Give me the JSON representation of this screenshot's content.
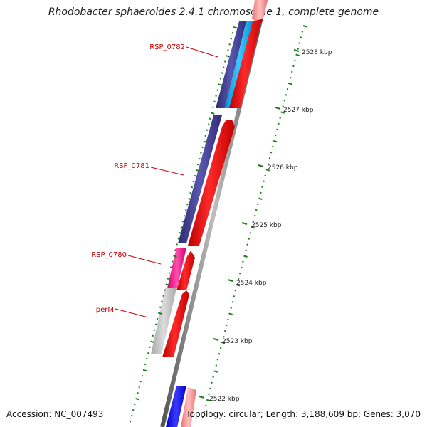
{
  "title": "Rhodobacter sphaeroides 2.4.1 chromosome 1, complete genome",
  "accession": "Accession: NC_007493",
  "topology": "Topology: circular; Length: 3,188,609 bp; Genes: 3,070",
  "colors": {
    "backbone": "#8c8c8c",
    "forward_feature": "#ff0000",
    "reverse_feature": "#3f3d8f",
    "tick": "#1a7f1a",
    "label": "#cc0000"
  },
  "scale_labels": [
    "2528 kbp",
    "2527 kbp",
    "2526 kbp",
    "2525 kbp",
    "2524 kbp",
    "2523 kbp",
    "2522 kbp"
  ],
  "gene_labels": [
    "RSP_0782",
    "RSP_0781",
    "RSP_0780",
    "perM"
  ]
}
